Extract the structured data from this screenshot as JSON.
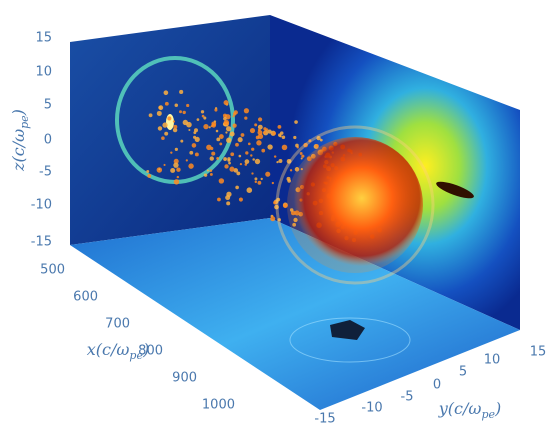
{
  "axes": {
    "z": {
      "label": {
        "main": "z(c/ω",
        "sub": "pe",
        "end": ")"
      },
      "ticks": [
        "15",
        "10",
        "5",
        "0",
        "-5",
        "-10",
        "-15"
      ]
    },
    "x": {
      "label": {
        "main": "x(c/ω",
        "sub": "pe",
        "end": ")"
      },
      "ticks": [
        "500",
        "600",
        "700",
        "800",
        "900",
        "1000"
      ]
    },
    "y": {
      "label": {
        "main": "y(c/ω",
        "sub": "pe",
        "end": ")"
      },
      "ticks": [
        "-15",
        "-10",
        "-5",
        "0",
        "5",
        "10",
        "15"
      ]
    }
  }
}
